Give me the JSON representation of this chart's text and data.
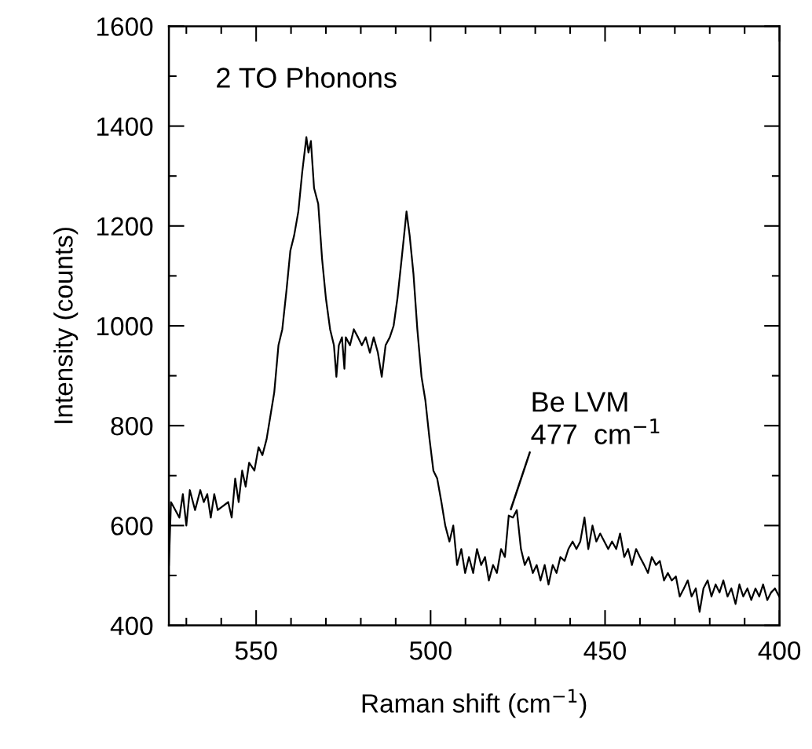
{
  "chart_data": {
    "type": "line",
    "xlabel": "Raman shift (cm$^{−1}$)",
    "ylabel": "Intensity (counts)",
    "annotations": [
      {
        "text": "2 TO Phonons",
        "x": 535.6,
        "y": 1378
      },
      {
        "text": "Be LVM\n477  cm$^{−1}$",
        "x": 477.6,
        "y": 620
      }
    ],
    "xlim": [
      575,
      400
    ],
    "ylim": [
      400,
      1600
    ],
    "xticks": [
      {
        "value": 570,
        "label": null
      },
      {
        "value": 560,
        "label": null
      },
      550,
      {
        "value": 540,
        "label": null
      },
      {
        "value": 530,
        "label": null
      },
      {
        "value": 520,
        "label": null
      },
      {
        "value": 510,
        "label": null
      },
      500,
      {
        "value": 490,
        "label": null
      },
      {
        "value": 480,
        "label": null
      },
      {
        "value": 470,
        "label": null
      },
      {
        "value": 460,
        "label": null
      },
      450,
      {
        "value": 440,
        "label": null
      },
      {
        "value": 430,
        "label": null
      },
      {
        "value": 420,
        "label": null
      },
      {
        "value": 410,
        "label": null
      },
      400
    ],
    "yticks": [
      400,
      {
        "value": 500,
        "label": null
      },
      600,
      {
        "value": 700,
        "label": null
      },
      800,
      {
        "value": 900,
        "label": null
      },
      1000,
      {
        "value": 1100,
        "label": null
      },
      1200,
      {
        "value": 1300,
        "label": null
      },
      1400,
      {
        "value": 1500,
        "label": null
      },
      1600
    ],
    "grid": false,
    "legend": false,
    "marker": "none",
    "line_style": "solid",
    "series": [
      {
        "color": "#000000",
        "x": [
          575,
          574.4,
          572,
          571,
          570,
          569,
          567.5,
          566,
          565,
          564,
          563,
          562,
          561,
          558,
          557,
          556,
          555,
          554,
          553,
          552,
          550.5,
          549.3,
          548.2,
          547,
          545.9,
          544.8,
          543.6,
          542.5,
          541.3,
          540.2,
          539.1,
          537.9,
          536.8,
          535.6,
          535,
          534.3,
          533.4,
          532.2,
          531.1,
          530,
          528.8,
          527.7,
          527,
          526.3,
          525.4,
          524.7,
          524.3,
          523.1,
          522,
          520.8,
          519.7,
          518.6,
          517.4,
          516.3,
          515.1,
          514,
          512.9,
          511.7,
          510.6,
          509.5,
          508.3,
          507.6,
          506.9,
          506,
          504.9,
          503.8,
          502.6,
          501.5,
          500.3,
          499.2,
          498.1,
          496.9,
          495.8,
          494.6,
          493.5,
          492.4,
          491.2,
          490.1,
          489,
          487.8,
          486.7,
          485.5,
          484.4,
          483.3,
          482.1,
          481,
          479.8,
          478.7,
          477.6,
          476.4,
          475.3,
          474.1,
          473,
          471.9,
          470.7,
          469.6,
          468.5,
          467.3,
          466.2,
          465,
          463.9,
          462.8,
          461.6,
          460.5,
          459.3,
          458.2,
          457.1,
          455.9,
          454.8,
          453.6,
          452.5,
          451.4,
          450.2,
          449.1,
          448,
          446.8,
          445.7,
          444.5,
          443.4,
          442.3,
          441.1,
          440,
          438.8,
          437.7,
          436.6,
          435.4,
          434.3,
          433.1,
          432,
          430.9,
          429.7,
          428.6,
          427.4,
          426.3,
          425.2,
          424,
          422.9,
          421.8,
          420.6,
          419.5,
          418.3,
          417.2,
          416.1,
          414.9,
          413.8,
          412.6,
          411.5,
          410.4,
          409.2,
          408.1,
          406.9,
          405.8,
          404.7,
          403.5,
          402.4,
          401.3,
          400.1
        ],
        "values": [
          521,
          647,
          616,
          663,
          600,
          671,
          631,
          671,
          647,
          663,
          616,
          663,
          631,
          647,
          616,
          694,
          647,
          710,
          678,
          726,
          710,
          757,
          741,
          773,
          820,
          867,
          961,
          993,
          1071,
          1150,
          1181,
          1229,
          1307,
          1378,
          1347,
          1370,
          1276,
          1244,
          1134,
          1055,
          993,
          961,
          898,
          961,
          977,
          914,
          977,
          961,
          993,
          977,
          961,
          977,
          946,
          977,
          946,
          898,
          961,
          977,
          1000,
          1055,
          1134,
          1181,
          1229,
          1181,
          1103,
          993,
          898,
          851,
          773,
          710,
          694,
          647,
          600,
          568,
          600,
          521,
          553,
          505,
          537,
          505,
          553,
          521,
          537,
          490,
          521,
          505,
          553,
          537,
          620,
          616,
          631,
          553,
          521,
          537,
          505,
          521,
          490,
          521,
          482,
          521,
          505,
          537,
          529,
          553,
          568,
          553,
          568,
          616,
          553,
          600,
          568,
          584,
          568,
          553,
          568,
          553,
          584,
          537,
          553,
          521,
          553,
          537,
          521,
          505,
          537,
          521,
          529,
          490,
          505,
          490,
          498,
          458,
          474,
          490,
          458,
          474,
          427,
          474,
          490,
          458,
          482,
          466,
          490,
          458,
          474,
          443,
          482,
          458,
          474,
          451,
          474,
          458,
          482,
          451,
          466,
          474,
          458
        ]
      }
    ]
  }
}
